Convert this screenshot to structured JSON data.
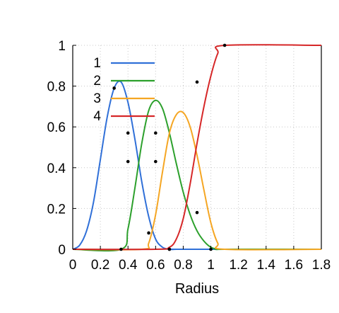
{
  "chart_data": {
    "type": "line",
    "title": "",
    "xlabel": "Radius",
    "ylabel": "",
    "xlim": [
      0,
      1.8
    ],
    "ylim": [
      0,
      1
    ],
    "grid": true,
    "legend_placement": "top-left",
    "x_ticks": [
      "0",
      "0.2",
      "0.4",
      "0.6",
      "0.8",
      "1",
      "1.2",
      "1.4",
      "1.6",
      "1.8"
    ],
    "y_ticks": [
      "0",
      "0.2",
      "0.4",
      "0.6",
      "0.8",
      "1"
    ],
    "series": [
      {
        "name": "1",
        "color": "#3070d8",
        "x": [
          0,
          0.05,
          0.1,
          0.15,
          0.2,
          0.25,
          0.3,
          0.35,
          0.4,
          0.45,
          0.5,
          0.55,
          0.6,
          0.65,
          0.7,
          0.75,
          0.8,
          1.8
        ],
        "y": [
          0,
          0.02,
          0.09,
          0.23,
          0.44,
          0.65,
          0.79,
          0.82,
          0.72,
          0.54,
          0.33,
          0.16,
          0.05,
          0.01,
          0,
          0,
          0,
          0
        ]
      },
      {
        "name": "2",
        "color": "#2ca02c",
        "x": [
          0,
          0.35,
          0.4,
          0.45,
          0.5,
          0.55,
          0.6,
          0.65,
          0.7,
          0.75,
          0.8,
          0.85,
          0.9,
          0.95,
          1.0,
          1.05,
          1.1,
          1.8
        ],
        "y": [
          0,
          0,
          0.1,
          0.3,
          0.52,
          0.68,
          0.73,
          0.69,
          0.57,
          0.42,
          0.28,
          0.17,
          0.09,
          0.04,
          0.01,
          0,
          0,
          0
        ]
      },
      {
        "name": "3",
        "color": "#f5a623",
        "x": [
          0,
          0.5,
          0.55,
          0.6,
          0.65,
          0.7,
          0.75,
          0.8,
          0.85,
          0.9,
          0.95,
          1.0,
          1.05,
          1.1,
          1.8
        ],
        "y": [
          0,
          0,
          0.03,
          0.17,
          0.38,
          0.57,
          0.66,
          0.67,
          0.6,
          0.46,
          0.29,
          0.13,
          0.03,
          0,
          0
        ]
      },
      {
        "name": "4",
        "color": "#d62728",
        "x": [
          0,
          0.6,
          0.7,
          0.75,
          0.8,
          0.85,
          0.9,
          0.95,
          1.0,
          1.05,
          1.1,
          1.8
        ],
        "y": [
          0,
          0,
          0.01,
          0.05,
          0.15,
          0.32,
          0.52,
          0.7,
          0.85,
          0.96,
          1.0,
          1.0
        ]
      }
    ],
    "markers": [
      {
        "x": 0.3,
        "y": 0.79
      },
      {
        "x": 0.4,
        "y": 0.57
      },
      {
        "x": 0.4,
        "y": 0.43
      },
      {
        "x": 0.55,
        "y": 0.08
      },
      {
        "x": 0.6,
        "y": 0.57
      },
      {
        "x": 0.6,
        "y": 0.43
      },
      {
        "x": 0.7,
        "y": 0.0
      },
      {
        "x": 0.9,
        "y": 0.82
      },
      {
        "x": 0.9,
        "y": 0.18
      },
      {
        "x": 1.0,
        "y": 0.0
      },
      {
        "x": 1.1,
        "y": 1.0
      },
      {
        "x": 0.35,
        "y": 0.0
      },
      {
        "x": 0.7,
        "y": 0.0
      }
    ]
  }
}
